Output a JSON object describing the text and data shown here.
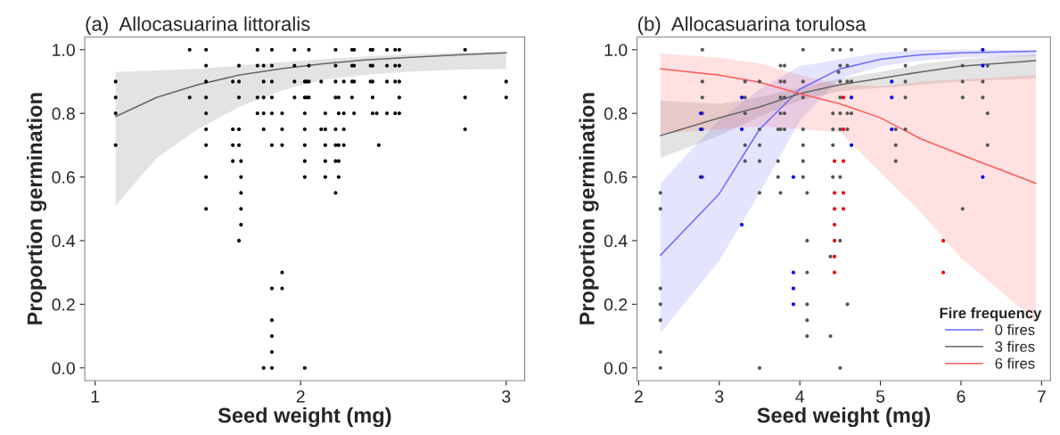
{
  "chart_data": [
    {
      "type": "scatter",
      "title": "(a)  Allocasuarina littoralis",
      "xlabel": "Seed weight (mg)",
      "ylabel": "Proportion germination",
      "xlim": [
        0.95,
        3.09
      ],
      "xticks": [
        1,
        2,
        3
      ],
      "ylim": [
        -0.04,
        1.04
      ],
      "yticks": [
        {
          "value": 0,
          "label": "0.0"
        },
        {
          "value": 0.2,
          "label": "0.2"
        },
        {
          "value": 0.4,
          "label": "0.4"
        },
        {
          "value": 0.6,
          "label": "0.6"
        },
        {
          "value": 0.8,
          "label": "0.8"
        },
        {
          "value": 1,
          "label": "1.0"
        }
      ],
      "grid": false,
      "legend": false,
      "series": [
        {
          "type": "scatter",
          "color": "#000000",
          "marker": "circle",
          "x": [
            1.1,
            1.1,
            1.1,
            1.1,
            1.46,
            1.46,
            1.54,
            1.54,
            1.54,
            1.54,
            1.54,
            1.54,
            1.54,
            1.54,
            1.54,
            1.67,
            1.67,
            1.67,
            1.67,
            1.7,
            1.7,
            1.7,
            1.7,
            1.7,
            1.7,
            1.71,
            1.71,
            1.71,
            1.71,
            1.71,
            1.79,
            1.79,
            1.79,
            1.79,
            1.82,
            1.82,
            1.82,
            1.82,
            1.82,
            1.82,
            1.86,
            1.86,
            1.86,
            1.86,
            1.86,
            1.86,
            1.86,
            1.86,
            1.86,
            1.86,
            1.86,
            1.91,
            1.91,
            1.91,
            1.91,
            1.91,
            1.97,
            1.97,
            1.97,
            1.97,
            2.02,
            2.02,
            2.02,
            2.02,
            2.02,
            2.02,
            2.02,
            2.02,
            2.04,
            2.04,
            2.04,
            2.04,
            2.03,
            2.03,
            2.1,
            2.1,
            2.12,
            2.12,
            2.12,
            2.12,
            2.12,
            2.17,
            2.17,
            2.17,
            2.17,
            2.17,
            2.17,
            2.17,
            2.17,
            2.185,
            2.185,
            2.185,
            2.185,
            2.185,
            2.21,
            2.21,
            2.21,
            2.21,
            2.25,
            2.25,
            2.25,
            2.25,
            2.26,
            2.26,
            2.26,
            2.26,
            2.34,
            2.34,
            2.34,
            2.35,
            2.35,
            2.35,
            2.35,
            2.35,
            2.37,
            2.38,
            2.42,
            2.42,
            2.42,
            2.42,
            2.46,
            2.46,
            2.46,
            2.46,
            2.48,
            2.48,
            2.48,
            2.48,
            2.48,
            2.8,
            2.8,
            2.8,
            3.0,
            3.0
          ],
          "values": [
            0.9,
            0.85,
            0.8,
            0.7,
            1.0,
            0.85,
            1.0,
            0.95,
            0.9,
            0.85,
            0.8,
            0.75,
            0.7,
            0.6,
            0.5,
            0.9,
            0.75,
            0.7,
            0.65,
            0.95,
            0.9,
            0.85,
            0.75,
            0.7,
            0.4,
            0.65,
            0.6,
            0.55,
            0.5,
            0.45,
            1.0,
            0.95,
            0.85,
            0.8,
            0.95,
            0.9,
            0.85,
            0.8,
            0.75,
            0,
            1.0,
            0.95,
            0.9,
            0.85,
            0.8,
            0.7,
            0.25,
            0.15,
            0.1,
            0.05,
            0,
            0.8,
            0.75,
            0.7,
            0.3,
            0.25,
            1.0,
            0.95,
            0.9,
            0.85,
            0.9,
            0.85,
            0.8,
            0.75,
            0.7,
            0.65,
            0.6,
            0,
            1.0,
            0.95,
            0.9,
            0.85,
            0.9,
            0.85,
            0.9,
            0.75,
            0.8,
            0.75,
            0.7,
            0.65,
            0.6,
            1.0,
            0.95,
            0.9,
            0.85,
            0.75,
            0.7,
            0.65,
            0.55,
            0.85,
            0.8,
            0.7,
            0.65,
            0.6,
            0.9,
            0.8,
            0.75,
            0.7,
            1.0,
            0.95,
            0.9,
            0.85,
            1.0,
            0.95,
            0.9,
            0.8,
            1.0,
            0.95,
            0.9,
            1.0,
            0.95,
            0.9,
            0.85,
            0.8,
            0.8,
            0.7,
            1.0,
            0.95,
            0.9,
            0.8,
            1.0,
            0.95,
            0.9,
            0.8,
            1.0,
            0.95,
            0.9,
            0.85,
            0.8,
            1.0,
            0.85,
            0.75,
            0.9,
            0.85
          ]
        },
        {
          "type": "line",
          "color": "#666666",
          "line_style": "solid",
          "x": [
            1.1,
            1.3,
            1.5,
            1.7,
            1.9,
            2.1,
            2.3,
            2.5,
            2.75,
            3.0
          ],
          "values": [
            0.79,
            0.85,
            0.89,
            0.92,
            0.94,
            0.955,
            0.967,
            0.975,
            0.983,
            0.99
          ],
          "lower": [
            0.51,
            0.66,
            0.75,
            0.82,
            0.87,
            0.905,
            0.92,
            0.93,
            0.937,
            0.94
          ],
          "upper": [
            0.93,
            0.935,
            0.94,
            0.95,
            0.96,
            0.97,
            0.978,
            0.985,
            0.99,
            0.995
          ]
        }
      ]
    },
    {
      "type": "scatter",
      "title": "(b)  Allocasuarina torulosa",
      "xlabel": "Seed weight (mg)",
      "ylabel": "Proportion germination",
      "xlim": [
        1.98,
        7.11
      ],
      "xticks": [
        2,
        3,
        4,
        5,
        6,
        7
      ],
      "ylim": [
        -0.04,
        1.04
      ],
      "yticks": [
        {
          "value": 0,
          "label": "0.0"
        },
        {
          "value": 0.2,
          "label": "0.2"
        },
        {
          "value": 0.4,
          "label": "0.4"
        },
        {
          "value": 0.6,
          "label": "0.6"
        },
        {
          "value": 0.8,
          "label": "0.8"
        },
        {
          "value": 1,
          "label": "1.0"
        }
      ],
      "grid": false,
      "legend": "bottom right",
      "legend_title": "Fire frequency",
      "series": [
        {
          "type": "scatter",
          "color": "#555555",
          "marker": "circle",
          "x": [
            2.27,
            2.27,
            2.27,
            2.27,
            2.27,
            2.27,
            2.27,
            2.79,
            2.79,
            2.79,
            2.79,
            2.79,
            2.79,
            3.32,
            3.32,
            3.32,
            3.32,
            3.32,
            3.5,
            3.5,
            3.5,
            3.5,
            3.5,
            3.5,
            3.73,
            3.73,
            3.73,
            3.76,
            3.76,
            3.76,
            3.76,
            3.76,
            3.76,
            3.81,
            3.81,
            3.81,
            3.81,
            3.81,
            4.04,
            4.04,
            4.04,
            4.04,
            4.04,
            4.04,
            4.04,
            4.09,
            4.09,
            4.09,
            4.09,
            4.09,
            4.09,
            4.38,
            4.38,
            4.41,
            4.41,
            4.41,
            4.41,
            4.41,
            4.5,
            4.5,
            4.5,
            4.5,
            4.5,
            4.5,
            4.5,
            4.5,
            4.5,
            4.48,
            4.59,
            4.59,
            4.59,
            4.59,
            4.59,
            4.64,
            4.64,
            4.64,
            5.19,
            5.19,
            5.19,
            5.31,
            5.31,
            5.31,
            5.31,
            5.31,
            6.02,
            6.02,
            6.02,
            6.02,
            6.27,
            6.27,
            6.33,
            6.33,
            6.33
          ],
          "values": [
            0.55,
            0.5,
            0.25,
            0.2,
            0.15,
            0.05,
            0,
            1.0,
            0.9,
            0.85,
            0.8,
            0.75,
            0.6,
            0.9,
            0.85,
            0.8,
            0.7,
            0.65,
            0.9,
            0.75,
            0.7,
            0.65,
            0.55,
            0,
            0.75,
            0.65,
            0.6,
            0.95,
            0.9,
            0.85,
            0.8,
            0.75,
            0.55,
            0.95,
            0.9,
            0.85,
            0.8,
            0.75,
            1.0,
            0.9,
            0.85,
            0.75,
            0.7,
            0.65,
            0.6,
            0.55,
            0.4,
            0.3,
            0.2,
            0.15,
            0.1,
            0.35,
            0.1,
            1.0,
            0.8,
            0.75,
            0.7,
            0.6,
            1.0,
            0.95,
            0.9,
            0.85,
            0.8,
            0.75,
            0.6,
            0.4,
            0,
            0.93,
            0.95,
            0.9,
            0.8,
            0.75,
            0.2,
            1.0,
            0.9,
            0.8,
            0.75,
            0.7,
            0.65,
            1.0,
            0.95,
            0.9,
            0.85,
            0.75,
            0.95,
            0.9,
            0.85,
            0.5,
            0.9,
            0.85,
            0.95,
            0.8,
            0.7
          ]
        },
        {
          "type": "scatter",
          "color": "#0000ee",
          "marker": "circle",
          "x": [
            2.77,
            2.77,
            2.77,
            3.28,
            3.28,
            3.28,
            3.92,
            3.92,
            3.92,
            3.92,
            4.64,
            4.64,
            5.14,
            5.14,
            5.14,
            6.27,
            6.27,
            6.27
          ],
          "values": [
            0.8,
            0.75,
            0.6,
            0.85,
            0.75,
            0.45,
            0.6,
            0.3,
            0.25,
            0.2,
            0.85,
            0.7,
            0.9,
            0.85,
            0.75,
            1.0,
            0.95,
            0.6
          ]
        },
        {
          "type": "scatter",
          "color": "#ee0000",
          "marker": "circle",
          "x": [
            4.43,
            4.43,
            4.43,
            4.43,
            4.43,
            4.43,
            4.43,
            4.54,
            4.54,
            4.54,
            4.54,
            4.54,
            5.78,
            5.78
          ],
          "values": [
            0.65,
            0.55,
            0.5,
            0.45,
            0.4,
            0.35,
            0.3,
            0.85,
            0.75,
            0.65,
            0.55,
            0.5,
            0.4,
            0.3
          ]
        },
        {
          "type": "line",
          "name": "0 fires",
          "color": "#6b6bff",
          "line_style": "solid",
          "x": [
            2.27,
            3.0,
            3.5,
            4.0,
            4.5,
            5.0,
            5.5,
            6.0,
            6.93
          ],
          "values": [
            0.354,
            0.547,
            0.75,
            0.876,
            0.94,
            0.97,
            0.984,
            0.99,
            0.995
          ],
          "lower": [
            0.11,
            0.336,
            0.55,
            0.777,
            0.91,
            0.947,
            0.966,
            0.975,
            0.98
          ],
          "upper": [
            0.58,
            0.78,
            0.876,
            0.948,
            0.97,
            0.99,
            1.0,
            1.0,
            1.0
          ]
        },
        {
          "type": "line",
          "name": "3 fires",
          "color": "#666666",
          "line_style": "solid",
          "x": [
            2.27,
            3.0,
            3.5,
            4.0,
            4.5,
            5.0,
            5.5,
            6.0,
            6.93
          ],
          "values": [
            0.73,
            0.786,
            0.82,
            0.862,
            0.89,
            0.91,
            0.93,
            0.948,
            0.966
          ],
          "lower": [
            0.66,
            0.73,
            0.79,
            0.84,
            0.87,
            0.88,
            0.89,
            0.9,
            0.91
          ],
          "upper": [
            0.84,
            0.83,
            0.85,
            0.88,
            0.91,
            0.93,
            0.955,
            0.97,
            0.985
          ]
        },
        {
          "type": "line",
          "name": "6 fires",
          "color": "#ff5a5a",
          "line_style": "solid",
          "x": [
            2.27,
            3.0,
            3.5,
            4.0,
            4.5,
            5.0,
            5.5,
            6.0,
            6.93
          ],
          "values": [
            0.94,
            0.92,
            0.898,
            0.862,
            0.83,
            0.786,
            0.72,
            0.67,
            0.58
          ],
          "lower": [
            0.736,
            0.75,
            0.76,
            0.75,
            0.74,
            0.615,
            0.49,
            0.345,
            0.147
          ],
          "upper": [
            0.988,
            0.975,
            0.957,
            0.92,
            0.89,
            0.885,
            0.9,
            0.907,
            0.92
          ]
        }
      ]
    }
  ]
}
